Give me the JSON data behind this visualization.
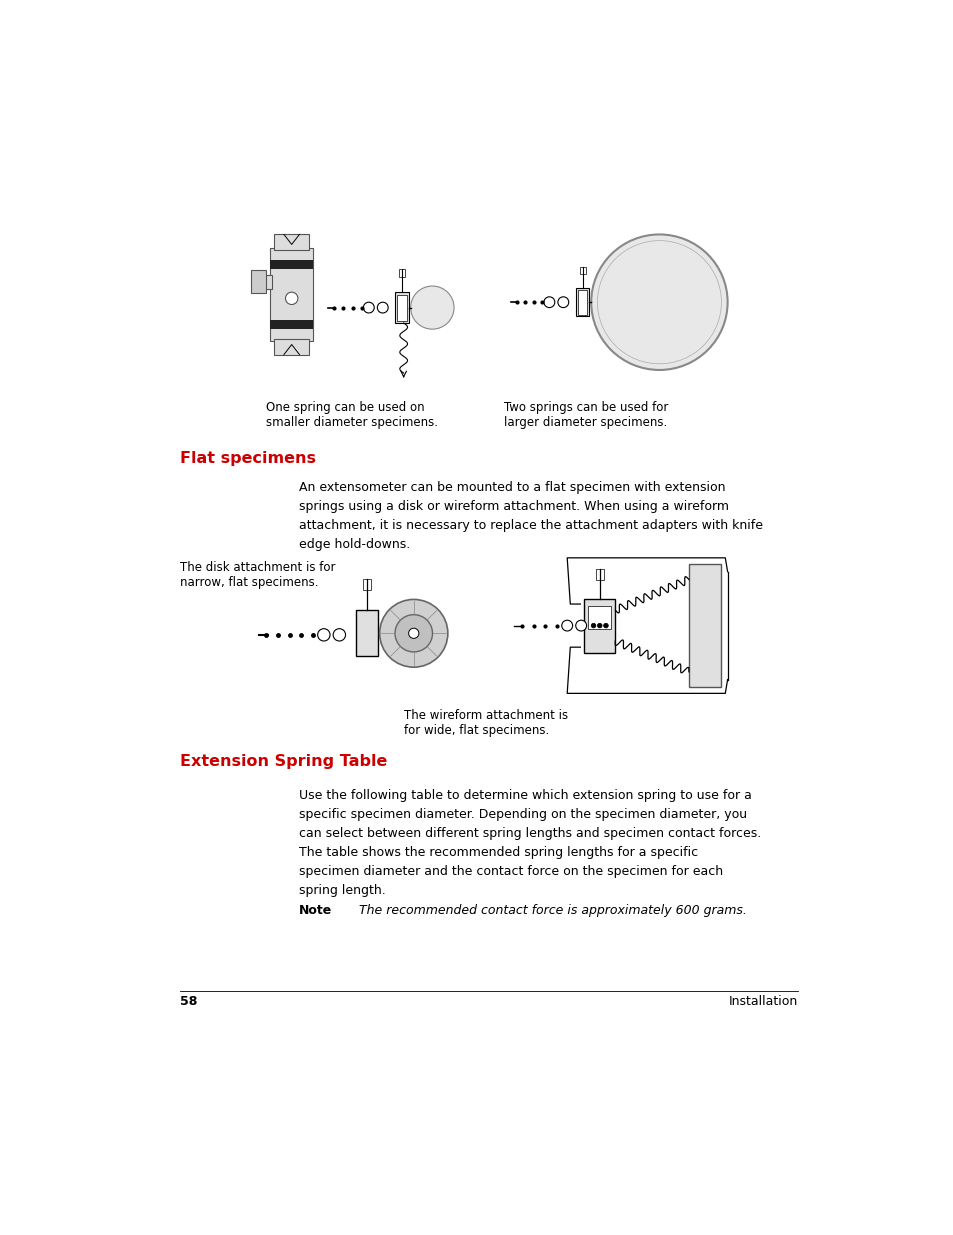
{
  "bg_color": "#ffffff",
  "page_width": 9.54,
  "page_height": 12.35,
  "dpi": 100,
  "section1_heading": "Flat specimens",
  "section1_heading_color": "#cc0000",
  "section1_heading_fontsize": 11.5,
  "section1_body": "An extensometer can be mounted to a flat specimen with extension\nsprings using a disk or wireform attachment. When using a wireform\nattachment, it is necessary to replace the attachment adapters with knife\nedge hold-downs.",
  "section1_body_fontsize": 9.0,
  "caption_disk": "The disk attachment is for\nnarrow, flat specimens.",
  "caption_disk_fontsize": 8.5,
  "caption_wire": "The wireform attachment is\nfor wide, flat specimens.",
  "caption_wire_fontsize": 8.5,
  "caption1_text": "One spring can be used on\nsmaller diameter specimens.",
  "caption1_fontsize": 8.5,
  "caption2_text": "Two springs can be used for\nlarger diameter specimens.",
  "caption2_fontsize": 8.5,
  "section2_heading": "Extension Spring Table",
  "section2_heading_color": "#cc0000",
  "section2_heading_fontsize": 11.5,
  "section2_body": "Use the following table to determine which extension spring to use for a\nspecific specimen diameter. Depending on the specimen diameter, you\ncan select between different spring lengths and specimen contact forces.\nThe table shows the recommended spring lengths for a specific\nspecimen diameter and the contact force on the specimen for each\nspring length.",
  "section2_body_fontsize": 9.0,
  "note_label": "Note",
  "note_text": "The recommended contact force is approximately 600 grams.",
  "note_fontsize": 9.0,
  "footer_page": "58",
  "footer_section": "Installation",
  "footer_fontsize": 9.0,
  "text_color": "#000000"
}
